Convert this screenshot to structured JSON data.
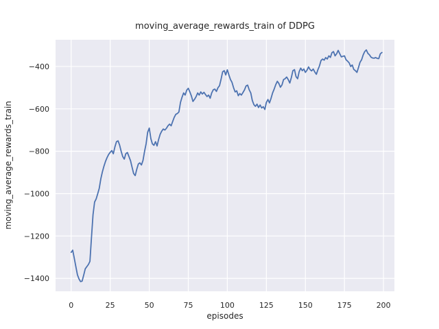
{
  "figure": {
    "title": "moving_average_rewards_train of DDPG",
    "xlabel": "episodes",
    "ylabel": "moving_average_rewards_train"
  },
  "chart_data": {
    "type": "line",
    "title": "moving_average_rewards_train of DDPG",
    "xlabel": "episodes",
    "ylabel": "moving_average_rewards_train",
    "legend": "none",
    "grid": true,
    "background": "#EAEAF2",
    "grid_color": "#FFFFFF",
    "line_color": "#4C72B0",
    "text_color": "#262626",
    "xlim": [
      -10,
      207
    ],
    "ylim": [
      -1461,
      -274
    ],
    "xticks": [
      0,
      25,
      50,
      75,
      100,
      125,
      150,
      175,
      200
    ],
    "xtick_labels": [
      "0",
      "25",
      "50",
      "75",
      "100",
      "125",
      "150",
      "175",
      "200"
    ],
    "yticks": [
      -400,
      -600,
      -800,
      -1000,
      -1200,
      -1400
    ],
    "ytick_labels": [
      "−400",
      "−600",
      "−800",
      "−1000",
      "−1200",
      "−1400"
    ],
    "x": {
      "start": 0,
      "step": 1,
      "count": 200
    },
    "y": [
      -1277,
      -1267,
      -1305,
      -1345,
      -1383,
      -1402,
      -1415,
      -1413,
      -1385,
      -1355,
      -1345,
      -1335,
      -1320,
      -1205,
      -1100,
      -1040,
      -1025,
      -1000,
      -975,
      -930,
      -897,
      -870,
      -848,
      -830,
      -815,
      -805,
      -797,
      -812,
      -780,
      -755,
      -751,
      -770,
      -800,
      -825,
      -837,
      -812,
      -806,
      -825,
      -845,
      -875,
      -905,
      -915,
      -885,
      -860,
      -855,
      -865,
      -843,
      -800,
      -765,
      -710,
      -691,
      -740,
      -765,
      -772,
      -755,
      -775,
      -745,
      -720,
      -705,
      -695,
      -700,
      -692,
      -680,
      -672,
      -680,
      -660,
      -640,
      -626,
      -622,
      -615,
      -570,
      -545,
      -525,
      -535,
      -512,
      -503,
      -520,
      -540,
      -565,
      -555,
      -542,
      -525,
      -535,
      -520,
      -530,
      -522,
      -532,
      -542,
      -535,
      -550,
      -525,
      -510,
      -507,
      -518,
      -500,
      -491,
      -460,
      -425,
      -420,
      -440,
      -416,
      -440,
      -462,
      -475,
      -500,
      -520,
      -515,
      -538,
      -528,
      -535,
      -523,
      -510,
      -492,
      -488,
      -510,
      -525,
      -560,
      -580,
      -588,
      -578,
      -594,
      -582,
      -596,
      -590,
      -603,
      -570,
      -556,
      -572,
      -550,
      -525,
      -507,
      -486,
      -470,
      -480,
      -498,
      -487,
      -462,
      -458,
      -450,
      -462,
      -478,
      -452,
      -420,
      -415,
      -448,
      -458,
      -425,
      -408,
      -420,
      -412,
      -428,
      -418,
      -402,
      -415,
      -421,
      -412,
      -426,
      -437,
      -415,
      -398,
      -372,
      -365,
      -370,
      -358,
      -365,
      -350,
      -357,
      -335,
      -330,
      -350,
      -340,
      -324,
      -340,
      -355,
      -352,
      -350,
      -368,
      -375,
      -383,
      -400,
      -393,
      -414,
      -420,
      -428,
      -405,
      -380,
      -368,
      -345,
      -330,
      -322,
      -338,
      -345,
      -356,
      -360,
      -361,
      -358,
      -362,
      -363,
      -340,
      -334
    ]
  }
}
